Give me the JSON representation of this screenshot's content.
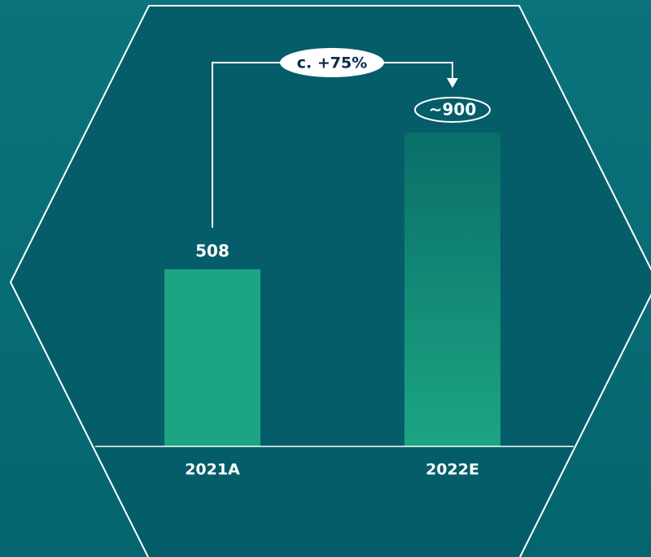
{
  "chart_data": {
    "type": "bar",
    "categories": [
      "2021A",
      "2022E"
    ],
    "values": [
      508,
      900
    ],
    "value_labels": [
      "508",
      "~900"
    ],
    "annotation": "c. +75%",
    "colors": [
      "#1ca583",
      "#1ca583"
    ]
  }
}
